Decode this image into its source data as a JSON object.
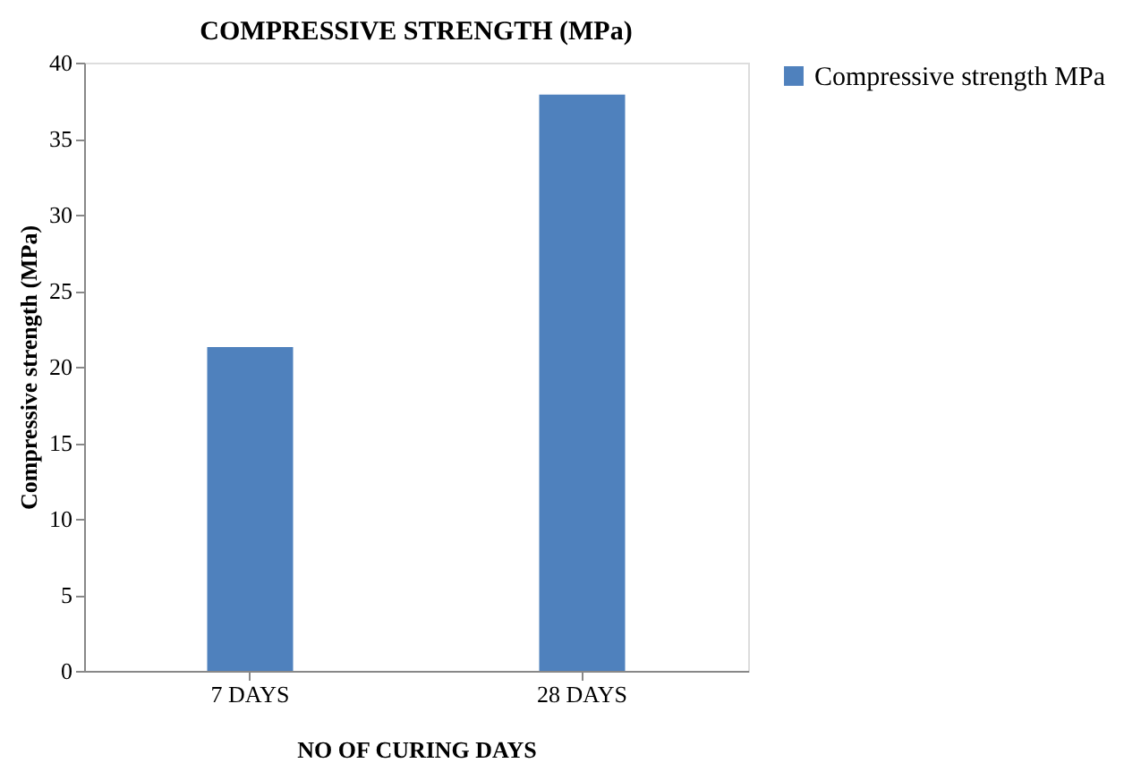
{
  "chart_data": {
    "type": "bar",
    "title": "COMPRESSIVE STRENGTH (MPa)",
    "xlabel": "NO OF CURING DAYS",
    "ylabel": "Compressive strength (MPa)",
    "categories": [
      "7 DAYS",
      "28 DAYS"
    ],
    "series": [
      {
        "name": "Compressive strength MPa",
        "color": "#4f81bd",
        "values": [
          21.3,
          37.9
        ]
      }
    ],
    "ylim": [
      0,
      40
    ],
    "yticks": [
      0,
      5,
      10,
      15,
      20,
      25,
      30,
      35,
      40
    ],
    "grid": false,
    "legend": "right"
  }
}
